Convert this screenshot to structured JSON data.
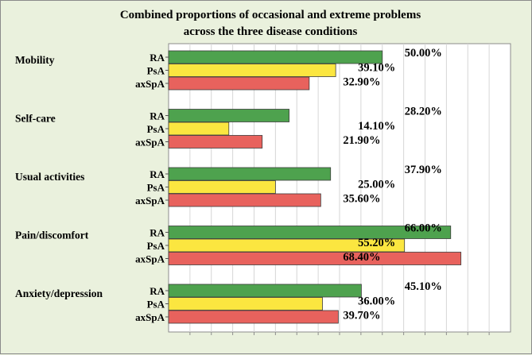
{
  "chart_data": {
    "type": "bar",
    "orientation": "horizontal",
    "title_lines": [
      "Combined proportions of occasional and extreme problems",
      "across the three disease conditions"
    ],
    "categories": [
      "Mobility",
      "Self-care",
      "Usual activities",
      "Pain/discomfort",
      "Anxiety/depression"
    ],
    "series": [
      {
        "name": "RA",
        "color": "#4ea24e",
        "values": [
          50.0,
          28.2,
          37.9,
          66.0,
          45.1
        ],
        "labels": [
          "50.00%",
          "28.20%",
          "37.90%",
          "66.00%",
          "45.10%"
        ]
      },
      {
        "name": "PsA",
        "color": "#fbe640",
        "values": [
          39.1,
          14.1,
          25.0,
          55.2,
          36.0
        ],
        "labels": [
          "39.10%",
          "14.10%",
          "25.00%",
          "55.20%",
          "36.00%"
        ]
      },
      {
        "name": "axSpA",
        "color": "#e8625d",
        "values": [
          32.9,
          21.9,
          35.6,
          68.4,
          39.7
        ],
        "labels": [
          "32.90%",
          "21.90%",
          "35.60%",
          "68.40%",
          "39.70%"
        ]
      }
    ],
    "xlim": [
      0,
      80
    ],
    "grid": true,
    "legend": "none"
  }
}
